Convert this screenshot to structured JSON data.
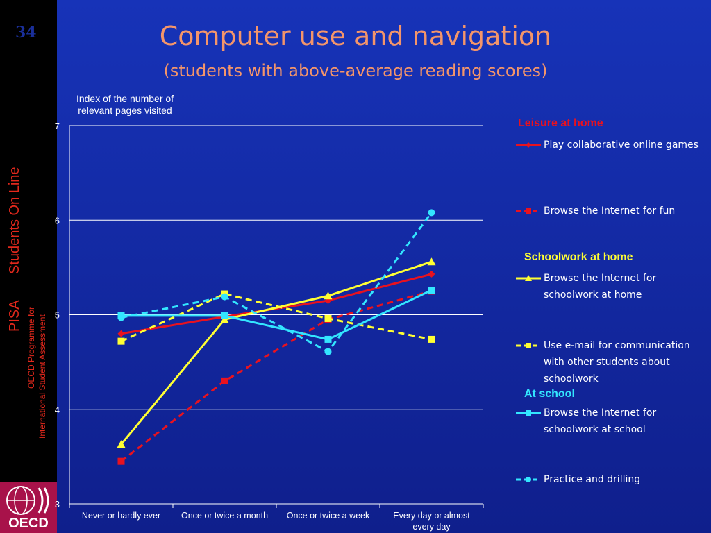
{
  "slide": {
    "number": "34"
  },
  "sidebar": {
    "brand": "Students On Line",
    "pisa": "PISA",
    "program_line1": "OECD Programme for",
    "program_line2": "International Student Assessment",
    "logo_text": "OECD"
  },
  "colors": {
    "red": "#e8121f",
    "yellow": "#ffff33",
    "cyan": "#33e6ff",
    "title": "#f4956a",
    "group_red": "#e8121f",
    "group_yellow": "#ffff33",
    "group_cyan": "#33e6ff"
  },
  "chart_data": {
    "type": "line",
    "title": "Computer use and navigation",
    "subtitle": "(students with above-average reading scores)",
    "ylabel": "Index of the number of relevant pages visited",
    "xlabel": "",
    "ylim": [
      3,
      7
    ],
    "yticks": [
      "3",
      "4",
      "5",
      "6",
      "7"
    ],
    "grid": true,
    "legend_position": "right",
    "categories": [
      "Never or hardly ever",
      "Once or twice a month",
      "Once or twice a week",
      "Every day or almost every day"
    ],
    "groups": [
      {
        "label": "Leisure at home",
        "color": "#e8121f",
        "series_index": [
          0,
          1
        ]
      },
      {
        "label": "Schoolwork at home",
        "color": "#ffff33",
        "series_index": [
          2,
          3
        ]
      },
      {
        "label": "At school",
        "color": "#33e6ff",
        "series_index": [
          4,
          5
        ]
      }
    ],
    "series": [
      {
        "name": "Play collaborative online games",
        "color": "#e8121f",
        "dashed": false,
        "marker": "diamond",
        "values": [
          4.8,
          4.98,
          5.15,
          5.43
        ]
      },
      {
        "name": "Browse the Internet for fun",
        "color": "#e8121f",
        "dashed": true,
        "marker": "square",
        "values": [
          3.45,
          4.3,
          4.95,
          5.25
        ]
      },
      {
        "name": "Browse the Internet for schoolwork at home",
        "color": "#ffff33",
        "dashed": false,
        "marker": "triangle",
        "values": [
          3.63,
          4.95,
          5.2,
          5.56
        ]
      },
      {
        "name": "Use e-mail for communication with other students about schoolwork",
        "color": "#ffff33",
        "dashed": true,
        "marker": "square",
        "values": [
          4.72,
          5.22,
          4.96,
          4.74
        ]
      },
      {
        "name": "Browse the Internet for schoolwork at school",
        "color": "#33e6ff",
        "dashed": false,
        "marker": "square",
        "values": [
          4.99,
          4.99,
          4.74,
          5.26
        ]
      },
      {
        "name": "Practice and drilling",
        "color": "#33e6ff",
        "dashed": true,
        "marker": "circle",
        "values": [
          4.97,
          5.19,
          4.61,
          6.08
        ]
      }
    ]
  }
}
